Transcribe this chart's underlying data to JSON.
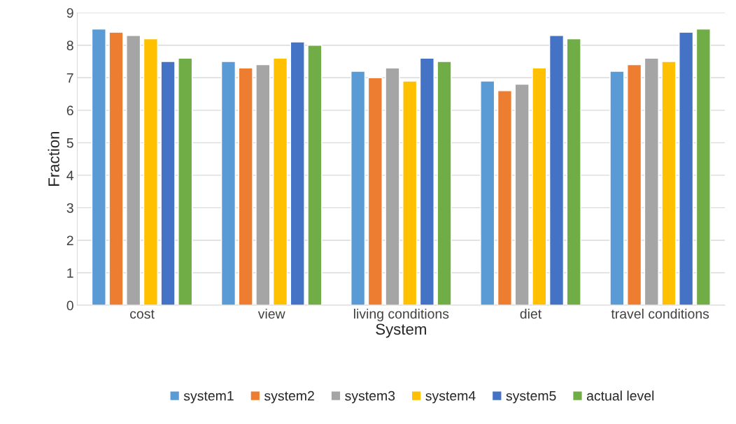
{
  "chart_data": {
    "type": "bar",
    "xlabel": "System",
    "ylabel": "Fraction",
    "categories": [
      "cost",
      "view",
      "living conditions",
      "diet",
      "travel conditions"
    ],
    "series": [
      {
        "name": "system1",
        "color": "#5b9bd5",
        "values": [
          8.5,
          7.5,
          7.2,
          6.9,
          7.2
        ]
      },
      {
        "name": "system2",
        "color": "#ed7d31",
        "values": [
          8.4,
          7.3,
          7.0,
          6.6,
          7.4
        ]
      },
      {
        "name": "system3",
        "color": "#a5a5a5",
        "values": [
          8.3,
          7.4,
          7.3,
          6.8,
          7.6
        ]
      },
      {
        "name": "system4",
        "color": "#ffc000",
        "values": [
          8.2,
          7.6,
          6.9,
          7.3,
          7.5
        ]
      },
      {
        "name": "system5",
        "color": "#4472c4",
        "values": [
          7.5,
          8.1,
          7.6,
          8.3,
          8.4
        ]
      },
      {
        "name": "actual level",
        "color": "#70ad47",
        "values": [
          7.6,
          8.0,
          7.5,
          8.2,
          8.5
        ]
      }
    ],
    "ylim": [
      0,
      9
    ],
    "yticks": [
      0,
      1,
      2,
      3,
      4,
      5,
      6,
      7,
      8,
      9
    ],
    "grid": "y",
    "legend": "bottom"
  }
}
